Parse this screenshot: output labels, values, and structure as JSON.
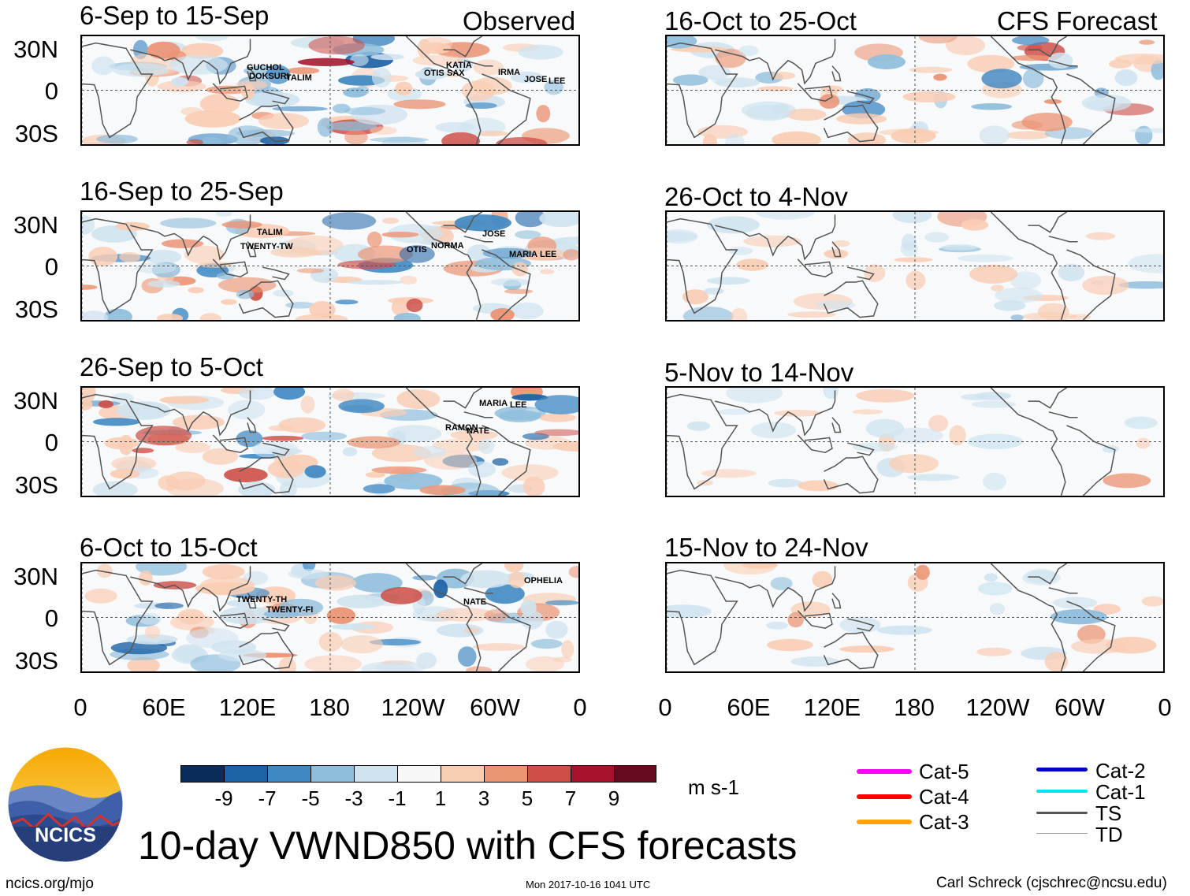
{
  "columns": {
    "observed_label": "Observed",
    "forecast_label": "CFS Forecast"
  },
  "panels_left": [
    {
      "title": "6-Sep to 15-Sep"
    },
    {
      "title": "16-Sep to 25-Sep"
    },
    {
      "title": "26-Sep to 5-Oct"
    },
    {
      "title": "6-Oct to 15-Oct"
    }
  ],
  "panels_right": [
    {
      "title": "16-Oct to 25-Oct"
    },
    {
      "title": "26-Oct to 4-Nov"
    },
    {
      "title": "5-Nov to 14-Nov"
    },
    {
      "title": "15-Nov to 24-Nov"
    }
  ],
  "lat_labels": [
    "30N",
    "0",
    "30S"
  ],
  "lon_labels": [
    "0",
    "60E",
    "120E",
    "180",
    "120W",
    "60W",
    "0"
  ],
  "storms": {
    "p1": [
      "GUCHOL",
      "DOKSURI",
      "TALIM",
      "KATIA",
      "OTIS",
      "SAX",
      "IRMA",
      "JOSE",
      "LEE"
    ],
    "p2": [
      "TALIM",
      "TWENTY-TW",
      "OTIS",
      "NORMA",
      "JOSE",
      "MARIA",
      "LEE"
    ],
    "p3": [
      "MARIA",
      "LEE",
      "RAMON",
      "NATE"
    ],
    "p4": [
      "TWENTY-TH",
      "TWENTY-FI",
      "NATE",
      "OPHELIA"
    ]
  },
  "colorbar": {
    "colors": [
      "#0b2c5a",
      "#1c62a6",
      "#3f88c2",
      "#8fbedc",
      "#cfe3ef",
      "#f7f7f7",
      "#f9cdb4",
      "#eb9474",
      "#cd4f47",
      "#a5142c",
      "#650a1f"
    ],
    "ticks": [
      "-9",
      "-7",
      "-5",
      "-3",
      "-1",
      "1",
      "3",
      "5",
      "7",
      "9"
    ],
    "units": "m s-1"
  },
  "legend": {
    "items": [
      {
        "label": "Cat-5",
        "color": "#ff00ff"
      },
      {
        "label": "Cat-4",
        "color": "#ff0000"
      },
      {
        "label": "Cat-3",
        "color": "#ffa500"
      },
      {
        "label": "Cat-2",
        "color": "#0000cd"
      },
      {
        "label": "Cat-1",
        "color": "#00e5ee"
      },
      {
        "label": "TS",
        "color": "#555555"
      },
      {
        "label": "TD",
        "color": "#999999"
      }
    ]
  },
  "logo": {
    "text": "NCICS"
  },
  "main_title": "10-day VWND850 with CFS forecasts",
  "footer": {
    "left": "ncics.org/mjo",
    "center": "Mon 2017-10-16 1041 UTC",
    "right": "Carl Schreck (cjschrec@ncsu.edu)"
  }
}
